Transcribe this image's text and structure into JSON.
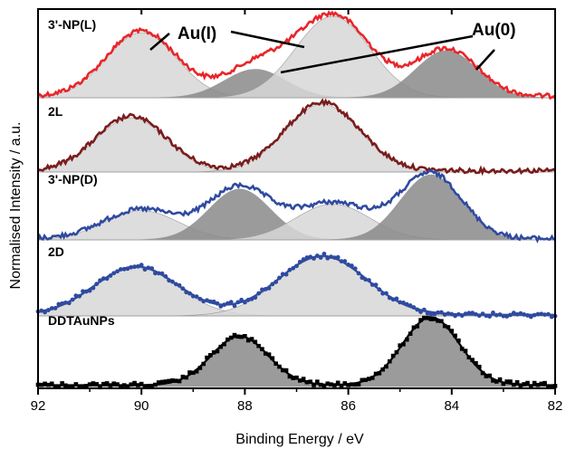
{
  "chart_data": {
    "type": "line",
    "xlabel": "Binding Energy / eV",
    "ylabel": "Normalised Intensity / a.u.",
    "xlim": [
      92,
      82
    ],
    "x_reversed": true,
    "x_ticks": [
      92,
      90,
      88,
      86,
      84,
      82
    ],
    "y_ticks_shown": false,
    "grid": false,
    "annotations": [
      "Au(I)",
      "Au(0)"
    ],
    "panels": [
      {
        "label": "3'-NP(L)",
        "color": "#e8262a",
        "series_style": "noisy line",
        "components": [
          {
            "species": "Au(I)",
            "center_eV": 90.0,
            "fwhm_eV": 1.6,
            "amplitude": 0.8,
            "fill": "#d7d7d7"
          },
          {
            "species": "Au(0)",
            "center_eV": 87.8,
            "fwhm_eV": 1.4,
            "amplitude": 0.35,
            "fill": "#8a8a8a"
          },
          {
            "species": "Au(I)",
            "center_eV": 86.3,
            "fwhm_eV": 1.7,
            "amplitude": 1.0,
            "fill": "#d7d7d7"
          },
          {
            "species": "Au(0)",
            "center_eV": 84.1,
            "fwhm_eV": 1.4,
            "amplitude": 0.58,
            "fill": "#8a8a8a"
          }
        ]
      },
      {
        "label": "2L",
        "color": "#7a1c1c",
        "series_style": "noisy line",
        "components": [
          {
            "species": "Au(I)",
            "center_eV": 90.2,
            "fwhm_eV": 1.6,
            "amplitude": 0.8,
            "fill": "#d7d7d7"
          },
          {
            "species": "Au(I)",
            "center_eV": 86.5,
            "fwhm_eV": 1.7,
            "amplitude": 1.0,
            "fill": "#d7d7d7"
          }
        ]
      },
      {
        "label": "3'-NP(D)",
        "color": "#2f4aa0",
        "series_style": "noisy line",
        "components": [
          {
            "species": "Au(I)",
            "center_eV": 90.0,
            "fwhm_eV": 1.7,
            "amplitude": 0.45,
            "fill": "#d7d7d7"
          },
          {
            "species": "Au(0)",
            "center_eV": 88.1,
            "fwhm_eV": 1.4,
            "amplitude": 0.78,
            "fill": "#8a8a8a"
          },
          {
            "species": "Au(I)",
            "center_eV": 86.3,
            "fwhm_eV": 1.7,
            "amplitude": 0.55,
            "fill": "#d7d7d7"
          },
          {
            "species": "Au(0)",
            "center_eV": 84.4,
            "fwhm_eV": 1.4,
            "amplitude": 1.0,
            "fill": "#8a8a8a"
          }
        ]
      },
      {
        "label": "2D",
        "color": "#2f4aa0",
        "series_style": "circle markers",
        "components": [
          {
            "species": "Au(I)",
            "center_eV": 90.1,
            "fwhm_eV": 1.9,
            "amplitude": 0.82,
            "fill": "#d7d7d7"
          },
          {
            "species": "Au(I)",
            "center_eV": 86.5,
            "fwhm_eV": 2.0,
            "amplitude": 1.0,
            "fill": "#d7d7d7"
          }
        ]
      },
      {
        "label": "DDTAuNPs",
        "color": "#000000",
        "series_style": "square markers",
        "components": [
          {
            "species": "Au(0)",
            "center_eV": 88.1,
            "fwhm_eV": 1.3,
            "amplitude": 0.72,
            "fill": "#8a8a8a"
          },
          {
            "species": "Au(0)",
            "center_eV": 84.4,
            "fwhm_eV": 1.3,
            "amplitude": 1.0,
            "fill": "#8a8a8a"
          }
        ]
      }
    ]
  }
}
